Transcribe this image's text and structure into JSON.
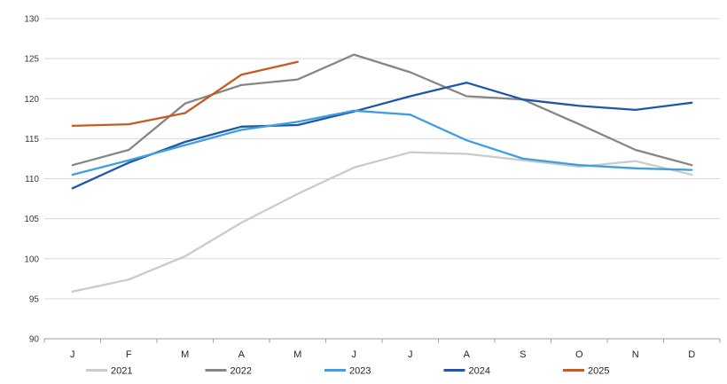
{
  "chart_data": {
    "type": "line",
    "title": "",
    "xlabel": "",
    "ylabel": "",
    "x_categories": [
      "J",
      "F",
      "M",
      "A",
      "M",
      "J",
      "J",
      "A",
      "S",
      "O",
      "N",
      "D"
    ],
    "ylim": [
      90,
      130
    ],
    "yticks": [
      90,
      95,
      100,
      105,
      110,
      115,
      120,
      125,
      130
    ],
    "grid": "horizontal",
    "legend_position": "bottom",
    "colors": {
      "gridline": "#d9d9d9",
      "axis": "#a0a0a0",
      "tick_text": "#3a3a3a",
      "background": "#ffffff"
    },
    "series": [
      {
        "name": "2021",
        "color": "#cbcbcb",
        "values": [
          95.9,
          97.4,
          100.3,
          104.5,
          108.1,
          111.4,
          113.3,
          113.1,
          112.3,
          111.5,
          112.2,
          110.5
        ]
      },
      {
        "name": "2022",
        "color": "#868686",
        "values": [
          111.7,
          113.6,
          119.4,
          121.7,
          122.4,
          125.5,
          123.3,
          120.3,
          119.9,
          116.8,
          113.6,
          111.7
        ]
      },
      {
        "name": "2023",
        "color": "#3d9fe0",
        "values": [
          110.5,
          112.3,
          114.2,
          116.1,
          117.1,
          118.5,
          118.0,
          114.8,
          112.5,
          111.7,
          111.3,
          111.1
        ]
      },
      {
        "name": "2024",
        "color": "#1f57a8",
        "values": [
          108.8,
          112.0,
          114.6,
          116.5,
          116.7,
          118.4,
          120.3,
          122.0,
          119.9,
          119.1,
          118.6,
          119.5
        ]
      },
      {
        "name": "2025",
        "color": "#c85a1e",
        "values": [
          116.6,
          116.8,
          118.2,
          123.0,
          124.6,
          null,
          null,
          null,
          null,
          null,
          null,
          null
        ]
      }
    ]
  }
}
